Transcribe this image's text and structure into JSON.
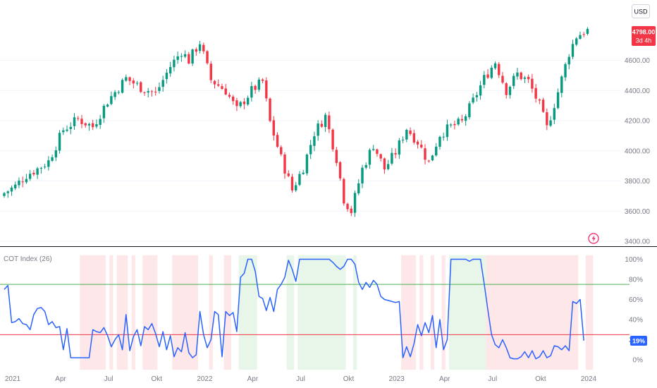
{
  "currency_button": {
    "label": "USD"
  },
  "last_price": {
    "value": "4798.00",
    "countdown": "3d 4h",
    "price": 4798,
    "color": "#f23645"
  },
  "indicator": {
    "title": "COT Index (26)",
    "current_label": "19%",
    "current_value": 19,
    "line_color": "#2962ff"
  },
  "colors": {
    "up": "#089981",
    "down": "#f23645",
    "upper_threshold_line": "#4caf50",
    "lower_threshold_line": "#f23645",
    "bull_zone": "#e8f5e9",
    "bear_zone": "#fde7e9"
  },
  "chart_data": [
    {
      "type": "candlestick",
      "title": "",
      "ylabel": "",
      "yticks": [
        3400,
        3600,
        3800,
        4000,
        4200,
        4400,
        4600
      ],
      "ytick_labels": [
        "3400.00",
        "3600.00",
        "3800.00",
        "4000.00",
        "4200.00",
        "4400.00",
        "4600.00"
      ],
      "ylim": [
        3400,
        4870
      ],
      "xticks": [
        {
          "label": "2021",
          "week": 0
        },
        {
          "label": "Apr",
          "week": 13
        },
        {
          "label": "Jul",
          "week": 26
        },
        {
          "label": "Okt",
          "week": 39
        },
        {
          "label": "2022",
          "week": 52
        },
        {
          "label": "Apr",
          "week": 65
        },
        {
          "label": "Jul",
          "week": 78
        },
        {
          "label": "Okt",
          "week": 91
        },
        {
          "label": "2023",
          "week": 104
        },
        {
          "label": "Apr",
          "week": 117
        },
        {
          "label": "Jul",
          "week": 130
        },
        {
          "label": "Okt",
          "week": 143
        },
        {
          "label": "2024",
          "week": 156
        }
      ],
      "close_anchors": [
        [
          0,
          3720
        ],
        [
          3,
          3765
        ],
        [
          6,
          3840
        ],
        [
          9,
          3880
        ],
        [
          12,
          3930
        ],
        [
          16,
          4140
        ],
        [
          20,
          4210
        ],
        [
          24,
          4160
        ],
        [
          28,
          4330
        ],
        [
          33,
          4480
        ],
        [
          37,
          4420
        ],
        [
          41,
          4380
        ],
        [
          45,
          4560
        ],
        [
          48,
          4660
        ],
        [
          50,
          4600
        ],
        [
          53,
          4720
        ],
        [
          56,
          4470
        ],
        [
          60,
          4400
        ],
        [
          63,
          4270
        ],
        [
          67,
          4400
        ],
        [
          70,
          4460
        ],
        [
          72,
          4190
        ],
        [
          75,
          3950
        ],
        [
          78,
          3740
        ],
        [
          81,
          3890
        ],
        [
          84,
          4120
        ],
        [
          87,
          4230
        ],
        [
          90,
          3950
        ],
        [
          92,
          3680
        ],
        [
          94,
          3600
        ],
        [
          97,
          3880
        ],
        [
          100,
          4040
        ],
        [
          103,
          3880
        ],
        [
          106,
          3990
        ],
        [
          109,
          4150
        ],
        [
          112,
          4060
        ],
        [
          115,
          3920
        ],
        [
          118,
          4110
        ],
        [
          121,
          4160
        ],
        [
          124,
          4190
        ],
        [
          127,
          4330
        ],
        [
          130,
          4480
        ],
        [
          133,
          4590
        ],
        [
          136,
          4400
        ],
        [
          139,
          4510
        ],
        [
          142,
          4460
        ],
        [
          145,
          4300
        ],
        [
          147,
          4150
        ],
        [
          150,
          4390
        ],
        [
          153,
          4650
        ],
        [
          155,
          4760
        ],
        [
          157,
          4790
        ],
        [
          158,
          4798
        ]
      ]
    },
    {
      "type": "line",
      "title": "COT Index (26)",
      "ylabel": "",
      "yticks": [
        0,
        20,
        40,
        60,
        80,
        100
      ],
      "ytick_labels": [
        "0%",
        "20%",
        "40%",
        "60%",
        "80%",
        "100%"
      ],
      "ylim": [
        -4,
        104
      ],
      "hlines": [
        {
          "value": 75
        },
        {
          "value": 25
        }
      ],
      "points": [
        [
          0,
          70
        ],
        [
          1,
          74
        ],
        [
          2,
          37
        ],
        [
          3,
          38
        ],
        [
          4,
          41
        ],
        [
          5,
          36
        ],
        [
          6,
          35
        ],
        [
          7,
          30
        ],
        [
          8,
          45
        ],
        [
          9,
          51
        ],
        [
          10,
          52
        ],
        [
          11,
          48
        ],
        [
          12,
          35
        ],
        [
          13,
          38
        ],
        [
          14,
          32
        ],
        [
          15,
          33
        ],
        [
          16,
          10
        ],
        [
          17,
          31
        ],
        [
          18,
          2
        ],
        [
          19,
          2
        ],
        [
          20,
          2
        ],
        [
          21,
          2
        ],
        [
          22,
          2
        ],
        [
          23,
          2
        ],
        [
          24,
          30
        ],
        [
          25,
          28
        ],
        [
          26,
          27
        ],
        [
          27,
          32
        ],
        [
          28,
          24
        ],
        [
          29,
          13
        ],
        [
          30,
          20
        ],
        [
          31,
          25
        ],
        [
          32,
          10
        ],
        [
          33,
          45
        ],
        [
          34,
          9
        ],
        [
          35,
          23
        ],
        [
          36,
          30
        ],
        [
          37,
          14
        ],
        [
          38,
          33
        ],
        [
          39,
          30
        ],
        [
          40,
          36
        ],
        [
          41,
          26
        ],
        [
          42,
          13
        ],
        [
          43,
          28
        ],
        [
          44,
          10
        ],
        [
          45,
          24
        ],
        [
          46,
          3
        ],
        [
          47,
          12
        ],
        [
          48,
          8
        ],
        [
          49,
          27
        ],
        [
          50,
          7
        ],
        [
          51,
          2
        ],
        [
          52,
          5
        ],
        [
          53,
          48
        ],
        [
          54,
          25
        ],
        [
          55,
          12
        ],
        [
          56,
          20
        ],
        [
          57,
          48
        ],
        [
          58,
          45
        ],
        [
          59,
          3
        ],
        [
          60,
          48
        ],
        [
          61,
          44
        ],
        [
          62,
          47
        ],
        [
          63,
          28
        ],
        [
          64,
          82
        ],
        [
          65,
          86
        ],
        [
          66,
          100
        ],
        [
          67,
          100
        ],
        [
          68,
          88
        ],
        [
          69,
          63
        ],
        [
          70,
          61
        ],
        [
          71,
          49
        ],
        [
          72,
          62
        ],
        [
          73,
          48
        ],
        [
          74,
          70
        ],
        [
          75,
          75
        ],
        [
          76,
          82
        ],
        [
          77,
          99
        ],
        [
          78,
          90
        ],
        [
          79,
          78
        ],
        [
          80,
          100
        ],
        [
          81,
          100
        ],
        [
          82,
          100
        ],
        [
          83,
          100
        ],
        [
          84,
          100
        ],
        [
          85,
          100
        ],
        [
          86,
          100
        ],
        [
          87,
          100
        ],
        [
          88,
          100
        ],
        [
          89,
          97
        ],
        [
          90,
          93
        ],
        [
          91,
          90
        ],
        [
          92,
          93
        ],
        [
          93,
          100
        ],
        [
          94,
          100
        ],
        [
          95,
          95
        ],
        [
          96,
          77
        ],
        [
          97,
          70
        ],
        [
          98,
          77
        ],
        [
          99,
          72
        ],
        [
          100,
          79
        ],
        [
          101,
          75
        ],
        [
          102,
          63
        ],
        [
          103,
          60
        ],
        [
          104,
          59
        ],
        [
          105,
          58
        ],
        [
          106,
          57
        ],
        [
          107,
          58
        ],
        [
          108,
          2
        ],
        [
          109,
          13
        ],
        [
          110,
          3
        ],
        [
          111,
          16
        ],
        [
          112,
          35
        ],
        [
          113,
          24
        ],
        [
          114,
          37
        ],
        [
          115,
          27
        ],
        [
          116,
          44
        ],
        [
          117,
          12
        ],
        [
          118,
          40
        ],
        [
          119,
          10
        ],
        [
          120,
          20
        ],
        [
          121,
          100
        ],
        [
          122,
          100
        ],
        [
          123,
          100
        ],
        [
          124,
          100
        ],
        [
          125,
          100
        ],
        [
          126,
          98
        ],
        [
          127,
          100
        ],
        [
          128,
          100
        ],
        [
          129,
          100
        ],
        [
          130,
          76
        ],
        [
          131,
          50
        ],
        [
          132,
          25
        ],
        [
          133,
          15
        ],
        [
          134,
          12
        ],
        [
          135,
          20
        ],
        [
          136,
          12
        ],
        [
          137,
          2
        ],
        [
          138,
          1
        ],
        [
          139,
          1
        ],
        [
          140,
          3
        ],
        [
          141,
          8
        ],
        [
          142,
          2
        ],
        [
          143,
          9
        ],
        [
          144,
          1
        ],
        [
          145,
          3
        ],
        [
          146,
          9
        ],
        [
          147,
          2
        ],
        [
          148,
          4
        ],
        [
          149,
          14
        ],
        [
          150,
          13
        ],
        [
          151,
          10
        ],
        [
          152,
          14
        ],
        [
          153,
          9
        ],
        [
          154,
          58
        ],
        [
          155,
          56
        ],
        [
          156,
          60
        ],
        [
          157,
          19
        ]
      ],
      "bull_zones": [
        [
          63.5,
          68.5
        ],
        [
          76.5,
          78.5
        ],
        [
          79.5,
          92.5
        ],
        [
          94.5,
          95.5
        ],
        [
          120.5,
          130.5
        ]
      ],
      "bear_zones": [
        [
          20.5,
          27.5
        ],
        [
          28.5,
          29.5
        ],
        [
          30.5,
          33.5
        ],
        [
          34.5,
          35.5
        ],
        [
          37.5,
          41.5
        ],
        [
          45.5,
          52.5
        ],
        [
          55.5,
          56.5
        ],
        [
          59.5,
          61.5
        ],
        [
          107.5,
          111.5
        ],
        [
          112.5,
          113.5
        ],
        [
          115.5,
          116.5
        ],
        [
          118.5,
          119.5
        ],
        [
          130.5,
          155.5
        ],
        [
          157.5,
          159.5
        ]
      ]
    }
  ]
}
